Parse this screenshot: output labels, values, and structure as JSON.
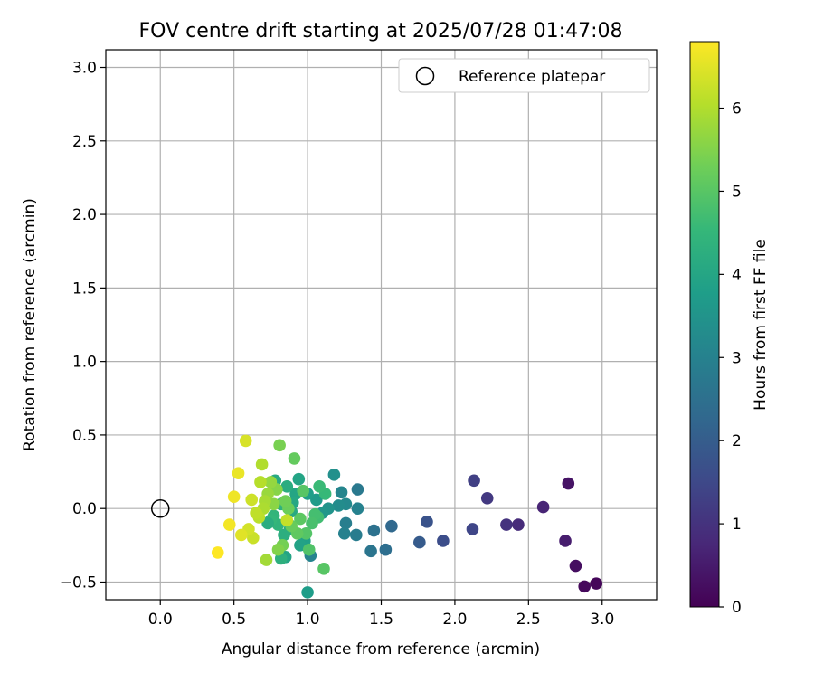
{
  "chart_data": {
    "type": "scatter",
    "title": "FOV centre drift starting at 2025/07/28 01:47:08",
    "xlabel": "Angular distance from reference (arcmin)",
    "ylabel": "Rotation from reference (arcmin)",
    "xlim": [
      -0.37,
      3.37
    ],
    "ylim": [
      -0.62,
      3.12
    ],
    "xticks": [
      0.0,
      0.5,
      1.0,
      1.5,
      2.0,
      2.5,
      3.0
    ],
    "xtick_labels": [
      "0.0",
      "0.5",
      "1.0",
      "1.5",
      "2.0",
      "2.5",
      "3.0"
    ],
    "yticks": [
      -0.5,
      0.0,
      0.5,
      1.0,
      1.5,
      2.0,
      2.5,
      3.0
    ],
    "ytick_labels": [
      "−0.5",
      "0.0",
      "0.5",
      "1.0",
      "1.5",
      "2.0",
      "2.5",
      "3.0"
    ],
    "grid": true,
    "legend": {
      "position": "top-right",
      "entries": [
        "Reference platepar"
      ]
    },
    "reference_point": {
      "x": 0.0,
      "y": 0.0
    },
    "colorbar": {
      "label": "Hours from first FF file",
      "min": 0,
      "max": 6.8,
      "ticks": [
        0,
        1,
        2,
        3,
        4,
        5,
        6
      ],
      "tick_labels": [
        "0",
        "1",
        "2",
        "3",
        "4",
        "5",
        "6"
      ],
      "colormap": "viridis",
      "colormap_stops": [
        "#440154",
        "#482878",
        "#3e4989",
        "#31688e",
        "#26828e",
        "#1f9e89",
        "#35b779",
        "#6ece58",
        "#b5de2b",
        "#fde725"
      ]
    },
    "points": [
      {
        "x": 2.96,
        "y": -0.51,
        "t": 0.1
      },
      {
        "x": 2.88,
        "y": -0.53,
        "t": 0.15
      },
      {
        "x": 2.82,
        "y": -0.39,
        "t": 0.25
      },
      {
        "x": 2.77,
        "y": 0.17,
        "t": 0.35
      },
      {
        "x": 2.75,
        "y": -0.22,
        "t": 0.55
      },
      {
        "x": 2.6,
        "y": 0.01,
        "t": 0.7
      },
      {
        "x": 2.43,
        "y": -0.11,
        "t": 0.85
      },
      {
        "x": 2.35,
        "y": -0.11,
        "t": 1.0
      },
      {
        "x": 2.22,
        "y": 0.07,
        "t": 1.15
      },
      {
        "x": 2.13,
        "y": 0.19,
        "t": 1.3
      },
      {
        "x": 2.12,
        "y": -0.14,
        "t": 1.45
      },
      {
        "x": 1.92,
        "y": -0.22,
        "t": 1.6
      },
      {
        "x": 1.81,
        "y": -0.09,
        "t": 1.75
      },
      {
        "x": 1.76,
        "y": -0.23,
        "t": 1.95
      },
      {
        "x": 1.57,
        "y": -0.12,
        "t": 2.3
      },
      {
        "x": 1.53,
        "y": -0.28,
        "t": 2.45
      },
      {
        "x": 1.45,
        "y": -0.15,
        "t": 2.55
      },
      {
        "x": 1.43,
        "y": -0.29,
        "t": 2.65
      },
      {
        "x": 1.34,
        "y": 0.13,
        "t": 2.75
      },
      {
        "x": 1.33,
        "y": -0.18,
        "t": 2.85
      },
      {
        "x": 1.34,
        "y": 0.0,
        "t": 3.0
      },
      {
        "x": 1.26,
        "y": -0.1,
        "t": 2.9
      },
      {
        "x": 1.25,
        "y": -0.17,
        "t": 3.0
      },
      {
        "x": 1.23,
        "y": 0.11,
        "t": 3.1
      },
      {
        "x": 1.26,
        "y": 0.03,
        "t": 3.2
      },
      {
        "x": 1.21,
        "y": 0.02,
        "t": 3.3
      },
      {
        "x": 1.18,
        "y": 0.23,
        "t": 3.4
      },
      {
        "x": 1.14,
        "y": 0.0,
        "t": 3.5
      },
      {
        "x": 1.1,
        "y": -0.03,
        "t": 3.6
      },
      {
        "x": 1.06,
        "y": 0.06,
        "t": 3.7
      },
      {
        "x": 1.02,
        "y": -0.32,
        "t": 3.05
      },
      {
        "x": 1.0,
        "y": -0.57,
        "t": 3.75
      },
      {
        "x": 1.0,
        "y": 0.1,
        "t": 3.8
      },
      {
        "x": 0.98,
        "y": -0.22,
        "t": 3.85
      },
      {
        "x": 0.95,
        "y": -0.25,
        "t": 3.9
      },
      {
        "x": 0.94,
        "y": 0.2,
        "t": 3.95
      },
      {
        "x": 0.92,
        "y": 0.1,
        "t": 4.0
      },
      {
        "x": 0.9,
        "y": 0.04,
        "t": 4.05
      },
      {
        "x": 0.89,
        "y": -0.02,
        "t": 4.1
      },
      {
        "x": 0.88,
        "y": -0.14,
        "t": 4.15
      },
      {
        "x": 0.86,
        "y": 0.15,
        "t": 4.2
      },
      {
        "x": 0.85,
        "y": -0.33,
        "t": 3.95
      },
      {
        "x": 0.84,
        "y": -0.18,
        "t": 4.25
      },
      {
        "x": 0.82,
        "y": -0.34,
        "t": 4.3
      },
      {
        "x": 0.82,
        "y": 0.03,
        "t": 4.35
      },
      {
        "x": 0.8,
        "y": -0.11,
        "t": 4.4
      },
      {
        "x": 0.78,
        "y": 0.19,
        "t": 4.1
      },
      {
        "x": 0.77,
        "y": -0.05,
        "t": 4.45
      },
      {
        "x": 0.75,
        "y": -0.08,
        "t": 4.5
      },
      {
        "x": 0.73,
        "y": -0.1,
        "t": 4.2
      },
      {
        "x": 1.12,
        "y": 0.1,
        "t": 4.55
      },
      {
        "x": 1.08,
        "y": 0.15,
        "t": 4.6
      },
      {
        "x": 1.07,
        "y": -0.06,
        "t": 4.7
      },
      {
        "x": 1.05,
        "y": -0.04,
        "t": 4.75
      },
      {
        "x": 1.03,
        "y": -0.1,
        "t": 4.8
      },
      {
        "x": 1.01,
        "y": -0.28,
        "t": 4.9
      },
      {
        "x": 0.99,
        "y": -0.17,
        "t": 4.95
      },
      {
        "x": 0.97,
        "y": 0.12,
        "t": 5.0
      },
      {
        "x": 0.95,
        "y": -0.07,
        "t": 5.05
      },
      {
        "x": 0.93,
        "y": -0.17,
        "t": 5.1
      },
      {
        "x": 0.91,
        "y": 0.34,
        "t": 5.15
      },
      {
        "x": 1.11,
        "y": -0.41,
        "t": 5.0
      },
      {
        "x": 0.89,
        "y": -0.12,
        "t": 5.2
      },
      {
        "x": 0.87,
        "y": 0.0,
        "t": 5.25
      },
      {
        "x": 0.85,
        "y": 0.05,
        "t": 5.3
      },
      {
        "x": 0.83,
        "y": -0.25,
        "t": 5.35
      },
      {
        "x": 0.81,
        "y": 0.43,
        "t": 5.4
      },
      {
        "x": 0.8,
        "y": -0.28,
        "t": 5.5
      },
      {
        "x": 0.79,
        "y": 0.13,
        "t": 5.55
      },
      {
        "x": 0.77,
        "y": 0.03,
        "t": 5.6
      },
      {
        "x": 0.75,
        "y": 0.18,
        "t": 5.7
      },
      {
        "x": 0.73,
        "y": 0.1,
        "t": 5.75
      },
      {
        "x": 0.72,
        "y": -0.35,
        "t": 5.85
      },
      {
        "x": 0.71,
        "y": 0.05,
        "t": 5.9
      },
      {
        "x": 0.7,
        "y": 0.0,
        "t": 5.95
      },
      {
        "x": 0.69,
        "y": 0.3,
        "t": 6.0
      },
      {
        "x": 0.68,
        "y": 0.18,
        "t": 6.05
      },
      {
        "x": 0.67,
        "y": -0.06,
        "t": 6.1
      },
      {
        "x": 0.65,
        "y": -0.03,
        "t": 6.15
      },
      {
        "x": 0.86,
        "y": -0.08,
        "t": 6.2
      },
      {
        "x": 0.63,
        "y": -0.2,
        "t": 6.25
      },
      {
        "x": 0.62,
        "y": 0.06,
        "t": 6.3
      },
      {
        "x": 0.6,
        "y": -0.14,
        "t": 6.35
      },
      {
        "x": 0.58,
        "y": 0.46,
        "t": 6.4
      },
      {
        "x": 0.55,
        "y": -0.18,
        "t": 6.5
      },
      {
        "x": 0.53,
        "y": 0.24,
        "t": 6.6
      },
      {
        "x": 0.5,
        "y": 0.08,
        "t": 6.65
      },
      {
        "x": 0.47,
        "y": -0.11,
        "t": 6.7
      },
      {
        "x": 0.39,
        "y": -0.3,
        "t": 6.8
      }
    ]
  }
}
